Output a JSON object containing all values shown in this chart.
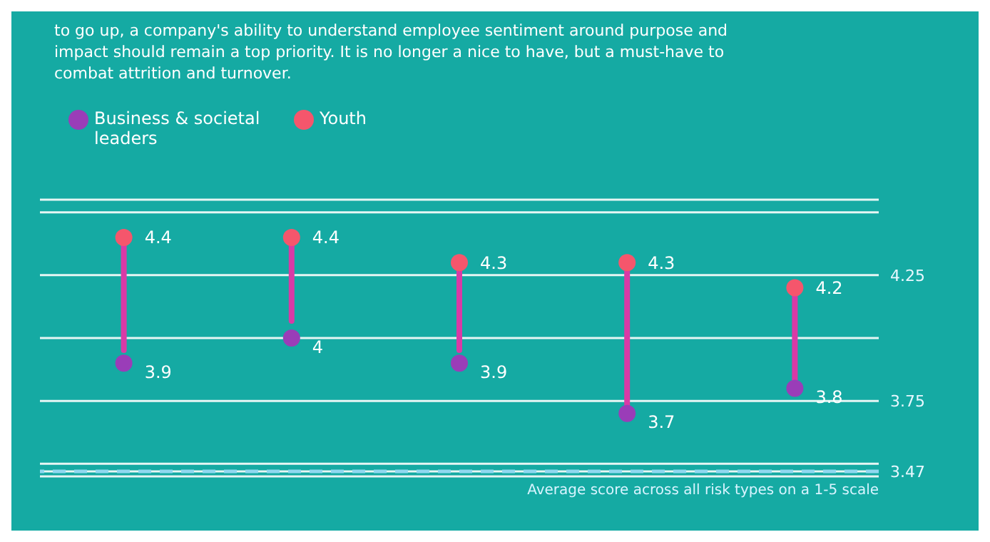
{
  "chart_data": {
    "type": "scatter",
    "annotations": [
      "to go up, a company's ability to understand employee sentiment around purpose and impact should remain a top priority. It is no longer a nice to have, but a must-have to combat attrition and turnover."
    ],
    "categories": [
      null,
      null,
      null,
      null,
      null
    ],
    "series": [
      {
        "name": "Youth",
        "color": "#f5566c",
        "values": [
          4.4,
          4.4,
          4.3,
          4.3,
          4.2
        ]
      },
      {
        "name": "Business & societal leaders",
        "color": "#9a3db8",
        "values": [
          3.9,
          4,
          3.9,
          3.7,
          3.8
        ]
      }
    ],
    "ylim": [
      3.45,
      4.55
    ],
    "yticks": [
      3.47,
      {
        "value": 3.5,
        "label": null
      },
      3.75,
      {
        "value": 4,
        "label": null
      },
      4.25,
      {
        "value": 4.5,
        "label": null
      }
    ],
    "ref_lines": [
      {
        "axis": "y",
        "value": 3.47,
        "label": "Average score across all risk types on a 1-5 scale",
        "color": "#8fd8f0",
        "line_style": "dashed"
      }
    ],
    "grid": "y",
    "legend": "top left",
    "data_labels": true,
    "marker": "circle"
  }
}
